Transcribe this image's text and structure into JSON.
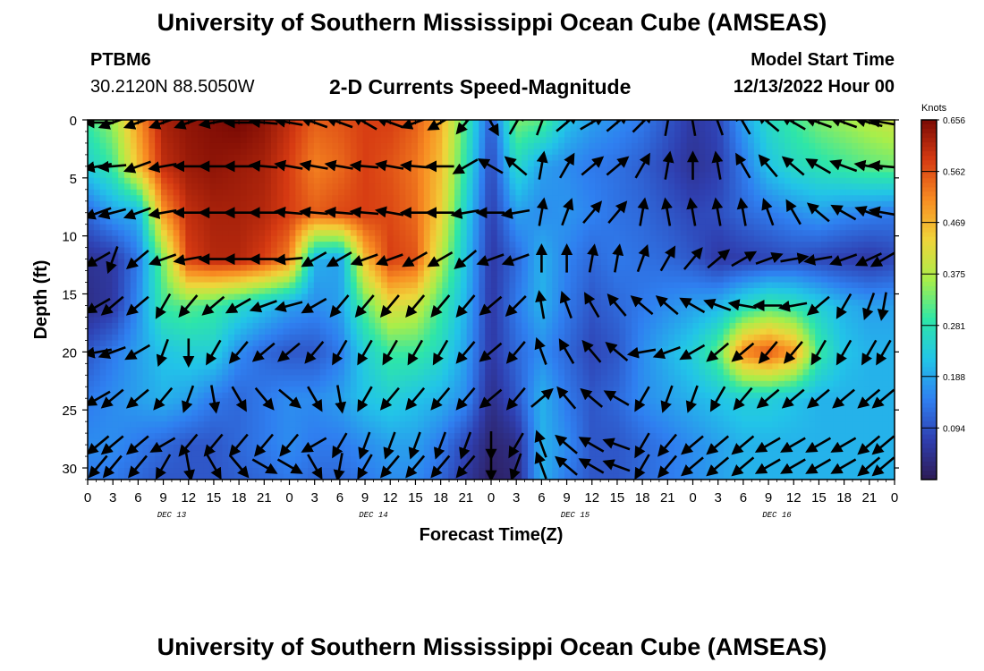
{
  "header": {
    "title": "University of Southern Mississippi Ocean Cube (AMSEAS)",
    "station": "PTBM6",
    "coords": "30.2120N  88.5050W",
    "subtitle": "2-D Currents Speed-Magnitude",
    "model_start_label": "Model Start Time",
    "model_start_value": "12/13/2022 Hour 00"
  },
  "footer": {
    "title": "University of Southern Mississippi Ocean Cube (AMSEAS)"
  },
  "colors": {
    "scale": [
      "#2d1b55",
      "#2f3fb0",
      "#2f7ff0",
      "#22c4e8",
      "#2ee6a8",
      "#a8ee4a",
      "#f0d43a",
      "#f88c22",
      "#d63a12",
      "#7a0a04"
    ]
  },
  "chart_data": {
    "type": "heatmap",
    "title": "2-D Currents Speed-Magnitude",
    "xlabel": "Forecast Time(Z)",
    "ylabel": "Depth (ft)",
    "x_ticks": [
      "0",
      "3",
      "6",
      "9",
      "12",
      "15",
      "18",
      "21",
      "0",
      "3",
      "6",
      "9",
      "12",
      "15",
      "18",
      "21",
      "0",
      "3",
      "6",
      "9",
      "12",
      "15",
      "18",
      "21",
      "0",
      "3",
      "6",
      "9",
      "12",
      "15",
      "18",
      "21",
      "0"
    ],
    "date_labels": [
      "DEC 13",
      "DEC 14",
      "DEC 15",
      "DEC 16"
    ],
    "y_ticks": [
      0,
      5,
      10,
      15,
      20,
      25,
      30
    ],
    "ylim": [
      0,
      31
    ],
    "xlim_hours": [
      0,
      96
    ],
    "colorbar": {
      "unit": "Knots",
      "ticks": [
        "0.656",
        "0.562",
        "0.469",
        "0.375",
        "0.281",
        "0.188",
        "0.094"
      ],
      "range": [
        0,
        0.656
      ]
    },
    "speed_field_knots": {
      "hours": [
        0,
        3,
        6,
        9,
        12,
        15,
        18,
        21,
        24,
        27,
        30,
        33,
        36,
        39,
        42,
        45,
        48,
        51,
        54,
        57,
        60,
        63,
        66,
        69,
        72,
        75,
        78,
        81,
        84,
        87,
        90,
        93,
        96
      ],
      "depths_ft": [
        0,
        4,
        8,
        12,
        16,
        20,
        24,
        28,
        31
      ],
      "rows": [
        [
          0.3,
          0.36,
          0.5,
          0.62,
          0.64,
          0.65,
          0.66,
          0.64,
          0.6,
          0.55,
          0.56,
          0.58,
          0.58,
          0.55,
          0.48,
          0.3,
          0.1,
          0.34,
          0.32,
          0.22,
          0.18,
          0.16,
          0.14,
          0.1,
          0.06,
          0.08,
          0.18,
          0.26,
          0.3,
          0.34,
          0.36,
          0.38,
          0.4
        ],
        [
          0.24,
          0.3,
          0.46,
          0.6,
          0.63,
          0.64,
          0.63,
          0.62,
          0.58,
          0.52,
          0.54,
          0.58,
          0.56,
          0.53,
          0.46,
          0.28,
          0.08,
          0.26,
          0.18,
          0.16,
          0.14,
          0.13,
          0.11,
          0.08,
          0.05,
          0.07,
          0.14,
          0.22,
          0.26,
          0.28,
          0.3,
          0.32,
          0.33
        ],
        [
          0.12,
          0.18,
          0.2,
          0.5,
          0.6,
          0.62,
          0.62,
          0.61,
          0.58,
          0.55,
          0.57,
          0.58,
          0.57,
          0.54,
          0.44,
          0.24,
          0.07,
          0.18,
          0.16,
          0.17,
          0.15,
          0.13,
          0.12,
          0.1,
          0.08,
          0.09,
          0.12,
          0.14,
          0.16,
          0.18,
          0.16,
          0.15,
          0.14
        ],
        [
          0.05,
          0.06,
          0.14,
          0.34,
          0.58,
          0.61,
          0.61,
          0.58,
          0.52,
          0.2,
          0.18,
          0.46,
          0.58,
          0.56,
          0.38,
          0.22,
          0.06,
          0.12,
          0.2,
          0.15,
          0.12,
          0.14,
          0.13,
          0.12,
          0.1,
          0.06,
          0.07,
          0.08,
          0.09,
          0.08,
          0.07,
          0.06,
          0.08
        ],
        [
          0.04,
          0.06,
          0.16,
          0.3,
          0.32,
          0.3,
          0.26,
          0.22,
          0.18,
          0.16,
          0.18,
          0.32,
          0.42,
          0.4,
          0.3,
          0.2,
          0.06,
          0.14,
          0.2,
          0.14,
          0.1,
          0.12,
          0.14,
          0.16,
          0.18,
          0.2,
          0.26,
          0.3,
          0.28,
          0.24,
          0.2,
          0.18,
          0.18
        ],
        [
          0.1,
          0.14,
          0.18,
          0.22,
          0.24,
          0.24,
          0.16,
          0.12,
          0.1,
          0.1,
          0.14,
          0.24,
          0.3,
          0.3,
          0.26,
          0.18,
          0.06,
          0.12,
          0.16,
          0.12,
          0.08,
          0.1,
          0.16,
          0.2,
          0.24,
          0.32,
          0.52,
          0.56,
          0.5,
          0.3,
          0.22,
          0.2,
          0.2
        ],
        [
          0.14,
          0.16,
          0.18,
          0.2,
          0.18,
          0.14,
          0.12,
          0.14,
          0.16,
          0.16,
          0.18,
          0.22,
          0.24,
          0.22,
          0.2,
          0.16,
          0.04,
          0.1,
          0.2,
          0.14,
          0.1,
          0.12,
          0.16,
          0.18,
          0.2,
          0.22,
          0.24,
          0.24,
          0.22,
          0.2,
          0.2,
          0.2,
          0.2
        ],
        [
          0.16,
          0.16,
          0.14,
          0.12,
          0.1,
          0.1,
          0.12,
          0.14,
          0.16,
          0.14,
          0.14,
          0.16,
          0.18,
          0.18,
          0.14,
          0.08,
          0.02,
          0.04,
          0.2,
          0.16,
          0.1,
          0.1,
          0.12,
          0.14,
          0.16,
          0.18,
          0.2,
          0.2,
          0.2,
          0.2,
          0.2,
          0.2,
          0.2
        ],
        [
          0.14,
          0.14,
          0.12,
          0.1,
          0.1,
          0.1,
          0.11,
          0.12,
          0.14,
          0.12,
          0.12,
          0.14,
          0.16,
          0.16,
          0.12,
          0.06,
          0.01,
          0.03,
          0.2,
          0.14,
          0.1,
          0.1,
          0.12,
          0.14,
          0.16,
          0.18,
          0.2,
          0.2,
          0.2,
          0.2,
          0.2,
          0.2,
          0.2
        ]
      ]
    },
    "vector_depths_ft": [
      0,
      4,
      8,
      12,
      16,
      20,
      24,
      28,
      30
    ],
    "vector_angles_deg": [
      [
        180,
        200,
        200,
        200,
        200,
        190,
        180,
        175,
        170,
        160,
        160,
        150,
        160,
        200,
        210,
        230,
        300,
        60,
        70,
        40,
        30,
        40,
        45,
        80,
        100,
        110,
        120,
        140,
        150,
        160,
        160,
        165,
        170
      ],
      [
        190,
        185,
        200,
        190,
        180,
        180,
        180,
        175,
        170,
        170,
        170,
        175,
        170,
        175,
        180,
        210,
        150,
        140,
        80,
        60,
        40,
        40,
        60,
        80,
        90,
        100,
        120,
        130,
        140,
        150,
        160,
        170,
        175
      ],
      [
        200,
        195,
        200,
        190,
        180,
        180,
        180,
        180,
        175,
        175,
        175,
        175,
        170,
        180,
        180,
        190,
        180,
        190,
        80,
        70,
        50,
        50,
        80,
        100,
        100,
        100,
        100,
        110,
        120,
        140,
        150,
        160,
        170
      ],
      [
        210,
        250,
        220,
        200,
        190,
        180,
        180,
        180,
        185,
        210,
        210,
        200,
        200,
        210,
        210,
        220,
        200,
        200,
        90,
        90,
        80,
        80,
        70,
        60,
        50,
        40,
        30,
        20,
        10,
        190,
        200,
        205,
        210
      ],
      [
        210,
        220,
        220,
        240,
        230,
        220,
        210,
        200,
        195,
        210,
        230,
        230,
        230,
        230,
        230,
        230,
        220,
        225,
        100,
        110,
        120,
        130,
        140,
        140,
        150,
        160,
        170,
        180,
        190,
        220,
        240,
        250,
        260
      ],
      [
        190,
        200,
        210,
        250,
        270,
        240,
        230,
        220,
        220,
        230,
        240,
        240,
        240,
        240,
        240,
        230,
        220,
        230,
        110,
        120,
        130,
        140,
        190,
        200,
        210,
        220,
        220,
        230,
        230,
        240,
        240,
        240,
        240
      ],
      [
        210,
        220,
        220,
        230,
        250,
        280,
        300,
        310,
        320,
        300,
        280,
        240,
        230,
        230,
        230,
        230,
        220,
        230,
        40,
        130,
        140,
        150,
        240,
        250,
        250,
        240,
        230,
        220,
        220,
        220,
        220,
        220,
        220
      ],
      [
        220,
        220,
        220,
        210,
        230,
        230,
        230,
        230,
        230,
        210,
        240,
        250,
        250,
        250,
        250,
        250,
        270,
        240,
        110,
        140,
        150,
        160,
        240,
        230,
        220,
        220,
        220,
        210,
        210,
        210,
        210,
        220,
        220
      ],
      [
        230,
        230,
        230,
        240,
        280,
        300,
        310,
        330,
        330,
        300,
        260,
        240,
        230,
        230,
        230,
        230,
        270,
        250,
        110,
        140,
        150,
        160,
        240,
        230,
        220,
        220,
        220,
        210,
        210,
        210,
        210,
        220,
        220
      ]
    ]
  }
}
